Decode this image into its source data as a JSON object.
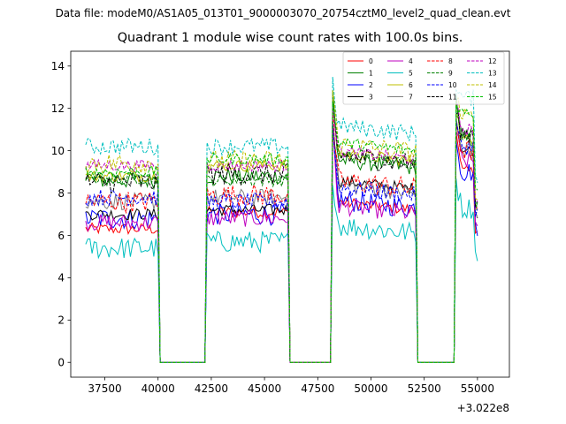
{
  "suptitle": "Data file: modeM0/AS1A05_013T01_9000003070_20754cztM0_level2_quad_clean.evt",
  "chart_data": {
    "type": "line",
    "title": "Quadrant 1 module wise count rates with 100.0s bins.",
    "xlabel": "",
    "ylabel": "",
    "x_offset_label": "+3.022e8",
    "xlim": [
      35900,
      56500
    ],
    "ylim": [
      -0.7,
      14.7
    ],
    "xticks": [
      37500,
      40000,
      42500,
      45000,
      47500,
      50000,
      52500,
      55000
    ],
    "xtick_labels": [
      "37500",
      "40000",
      "42500",
      "45000",
      "47500",
      "50000",
      "52500",
      "55000"
    ],
    "yticks": [
      0,
      2,
      4,
      6,
      8,
      10,
      12,
      14
    ],
    "ytick_labels": [
      "0",
      "2",
      "4",
      "6",
      "8",
      "10",
      "12",
      "14"
    ],
    "grid": false,
    "legend_position": "top-right",
    "legend_columns": 4,
    "bin_seconds": 100,
    "on_segments": [
      [
        36600,
        40000
      ],
      [
        42300,
        46100
      ],
      [
        48200,
        52100
      ],
      [
        54000,
        55000
      ]
    ],
    "off_segments": [
      [
        40100,
        42300
      ],
      [
        46200,
        48200
      ],
      [
        52200,
        54000
      ]
    ],
    "series": [
      {
        "name": "0",
        "color": "#ff0000",
        "dash": "solid",
        "mean": [
          6.3,
          7.1,
          7.2,
          9.0
        ],
        "spike": 11.5
      },
      {
        "name": "1",
        "color": "#008000",
        "dash": "solid",
        "mean": [
          8.6,
          8.8,
          9.2,
          10.5
        ],
        "spike": 12.9
      },
      {
        "name": "2",
        "color": "#0000ff",
        "dash": "solid",
        "mean": [
          6.8,
          7.0,
          7.3,
          9.0
        ],
        "spike": 11.0
      },
      {
        "name": "3",
        "color": "#000000",
        "dash": "solid",
        "mean": [
          7.0,
          7.2,
          8.2,
          10.0
        ],
        "spike": 11.8
      },
      {
        "name": "4",
        "color": "#bf00bf",
        "dash": "solid",
        "mean": [
          6.6,
          6.8,
          7.0,
          9.5
        ],
        "spike": 11.2
      },
      {
        "name": "5",
        "color": "#00bfbf",
        "dash": "solid",
        "mean": [
          5.4,
          5.7,
          6.1,
          7.3
        ],
        "spike": 8.9
      },
      {
        "name": "6",
        "color": "#bfbf00",
        "dash": "solid",
        "mean": [
          8.8,
          9.3,
          9.5,
          10.5
        ],
        "spike": 12.2
      },
      {
        "name": "7",
        "color": "#808080",
        "dash": "solid",
        "mean": [
          7.6,
          7.8,
          8.0,
          10.0
        ],
        "spike": 11.6
      },
      {
        "name": "8",
        "color": "#ff0000",
        "dash": "dashed",
        "mean": [
          7.6,
          7.9,
          8.2,
          10.0
        ],
        "spike": 11.7
      },
      {
        "name": "9",
        "color": "#008000",
        "dash": "dashed",
        "mean": [
          8.7,
          8.6,
          9.4,
          10.8
        ],
        "spike": 12.6
      },
      {
        "name": "10",
        "color": "#0000ff",
        "dash": "dashed",
        "mean": [
          7.8,
          7.6,
          7.9,
          10.2
        ],
        "spike": 11.3
      },
      {
        "name": "11",
        "color": "#000000",
        "dash": "dashed",
        "mean": [
          8.5,
          8.9,
          9.4,
          10.8
        ],
        "spike": 12.0
      },
      {
        "name": "12",
        "color": "#bf00bf",
        "dash": "dashed",
        "mean": [
          9.3,
          9.3,
          9.6,
          11.0
        ],
        "spike": 12.4
      },
      {
        "name": "13",
        "color": "#00bfbf",
        "dash": "dashed",
        "mean": [
          10.2,
          10.2,
          10.8,
          12.5
        ],
        "spike": 13.3
      },
      {
        "name": "14",
        "color": "#bfbf00",
        "dash": "dashed",
        "mean": [
          9.4,
          9.5,
          9.9,
          11.5
        ],
        "spike": 12.9
      },
      {
        "name": "15",
        "color": "#00bf00",
        "dash": "dashed",
        "mean": [
          9.0,
          9.6,
          10.0,
          11.8
        ],
        "spike": 12.3
      }
    ]
  }
}
